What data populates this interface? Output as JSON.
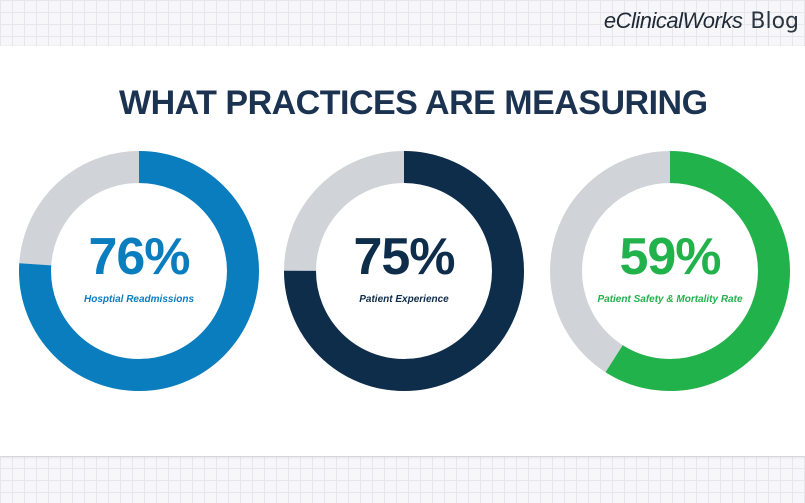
{
  "brand": {
    "name": "eClinicalWorks",
    "suffix": "Blog"
  },
  "chart_data": {
    "type": "donut",
    "title": "WHAT PRACTICES ARE MEASURING",
    "track_color": "#d0d3d8",
    "items": [
      {
        "value": 76,
        "label": "76%",
        "name": "Hosptial Readmissions",
        "color": "#0a7dbf"
      },
      {
        "value": 75,
        "label": "75%",
        "name": "Patient Experience",
        "color": "#0d2d4b"
      },
      {
        "value": 59,
        "label": "59%",
        "name": "Patient Safety & Mortality Rate",
        "color": "#22b24c"
      }
    ]
  }
}
